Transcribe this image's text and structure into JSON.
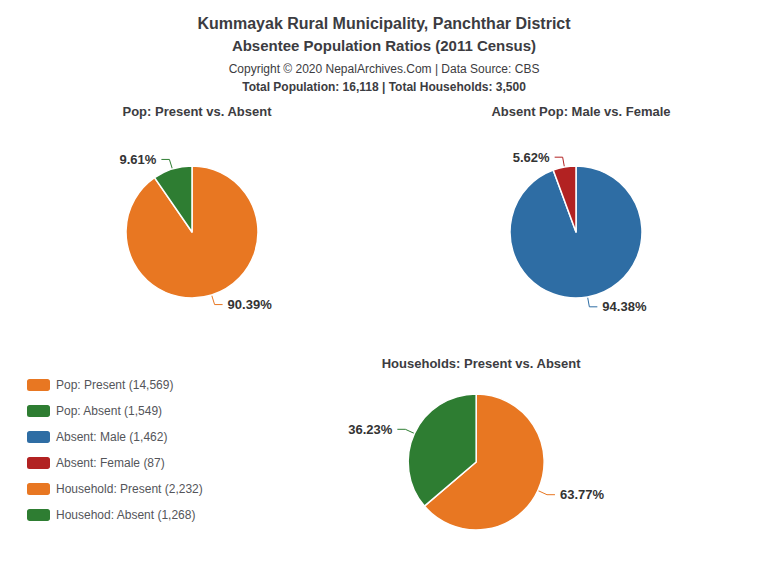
{
  "title": "Kummayak Rural Municipality, Panchthar District",
  "subtitle": "Absentee Population Ratios (2011 Census)",
  "annotations": [
    "Copyright © 2020 NepalArchives.Com | Data Source: CBS",
    "Total Population: 16,118 | Total Households: 3,500"
  ],
  "legend": "left",
  "chart_data": [
    {
      "type": "pie",
      "title": "Pop: Present vs. Absent",
      "categories": [
        "Pop: Present (14,569)",
        "Pop: Absent (1,549)"
      ],
      "values": [
        90.39,
        9.61
      ],
      "value_labels": [
        "90.39%",
        "9.61%"
      ],
      "colors": [
        "#e87722",
        "#2e7d32"
      ],
      "data_labels": true
    },
    {
      "type": "pie",
      "title": "Absent Pop: Male vs. Female",
      "categories": [
        "Absent: Male (1,462)",
        "Absent: Female (87)"
      ],
      "values": [
        94.38,
        5.62
      ],
      "value_labels": [
        "94.38%",
        "5.62%"
      ],
      "colors": [
        "#2e6da4",
        "#b22222"
      ],
      "data_labels": true
    },
    {
      "type": "pie",
      "title": "Households: Present vs. Absent",
      "categories": [
        "Household: Present (2,232)",
        "Househod: Absent (1,268)"
      ],
      "values": [
        63.77,
        36.23
      ],
      "value_labels": [
        "63.77%",
        "36.23%"
      ],
      "colors": [
        "#e87722",
        "#2e7d32"
      ],
      "data_labels": true
    }
  ]
}
